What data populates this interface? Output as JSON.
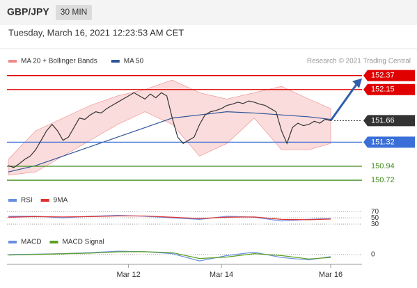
{
  "header": {
    "symbol": "GBP/JPY",
    "timeframe": "30 MIN",
    "datetime": "Tuesday, March 16, 2021 12:23:53 AM CET"
  },
  "chart_data": [
    {
      "type": "line",
      "credit": "Research © 2021 Trading Central",
      "legend": [
        {
          "name": "MA 20 + Bollinger Bands",
          "color": "#f08a8a"
        },
        {
          "name": "MA 50",
          "color": "#2f5597"
        }
      ],
      "color": "#333333",
      "values": [
        150.95,
        150.92,
        150.98,
        151.05,
        151.1,
        151.2,
        151.35,
        151.5,
        151.6,
        151.5,
        151.35,
        151.4,
        151.55,
        151.7,
        151.68,
        151.75,
        151.8,
        151.78,
        151.85,
        151.9,
        151.95,
        152.0,
        152.05,
        152.1,
        152.05,
        152.0,
        152.08,
        152.02,
        152.1,
        152.05,
        151.7,
        151.4,
        151.3,
        151.35,
        151.4,
        151.6,
        151.75,
        151.8,
        151.82,
        151.85,
        151.9,
        151.92,
        151.95,
        151.93,
        151.97,
        151.95,
        151.92,
        151.9,
        151.85,
        151.8,
        151.5,
        151.3,
        151.55,
        151.62,
        151.58,
        151.6,
        151.65,
        151.62,
        151.68,
        151.66
      ],
      "band_x": [
        0,
        5,
        10,
        15,
        20,
        25,
        30,
        35,
        40,
        45,
        50,
        55,
        59
      ],
      "band_upper": [
        151.05,
        151.5,
        151.7,
        151.9,
        152.05,
        152.15,
        152.3,
        152.1,
        152.0,
        152.1,
        152.2,
        152.0,
        151.85
      ],
      "band_lower": [
        150.8,
        150.85,
        151.1,
        151.35,
        151.6,
        151.8,
        151.6,
        151.1,
        151.3,
        151.7,
        151.2,
        151.2,
        151.3
      ],
      "ma50": [
        150.85,
        150.95,
        151.1,
        151.25,
        151.4,
        151.55,
        151.7,
        151.75,
        151.8,
        151.78,
        151.75,
        151.72,
        151.68
      ],
      "levels": [
        {
          "value": 152.37,
          "color": "#e00000"
        },
        {
          "value": 152.15,
          "color": "#e00000"
        },
        {
          "value": 151.66,
          "color": "#333333"
        },
        {
          "value": 151.32,
          "color": "#3a6fd8"
        },
        {
          "value": 150.94,
          "color": "#3d8a1a"
        },
        {
          "value": 150.72,
          "color": "#3d8a1a"
        }
      ],
      "ylim": [
        150.6,
        152.52
      ]
    },
    {
      "type": "line",
      "x": [
        0,
        5,
        10,
        15,
        20,
        25,
        30,
        35,
        40,
        45,
        50,
        55,
        59
      ],
      "series": [
        {
          "name": "RSI",
          "color": "#6a8ee0",
          "values": [
            55,
            55,
            50,
            55,
            58,
            55,
            50,
            45,
            55,
            52,
            40,
            45,
            48
          ]
        },
        {
          "name": "9MA",
          "color": "#e03030",
          "values": [
            52,
            54,
            53,
            54,
            56,
            56,
            52,
            48,
            52,
            53,
            45,
            44,
            46
          ]
        }
      ],
      "ylim": [
        17,
        97
      ],
      "yticks": [
        70,
        50,
        30
      ]
    },
    {
      "type": "line",
      "x": [
        0,
        5,
        10,
        15,
        20,
        25,
        30,
        35,
        40,
        45,
        50,
        55,
        59
      ],
      "series": [
        {
          "name": "MACD",
          "color": "#6a8ee0",
          "values": [
            0,
            0.05,
            0.1,
            0.2,
            0.35,
            0.3,
            0.1,
            -0.65,
            -0.1,
            0.25,
            -0.3,
            -0.55,
            -0.2
          ]
        },
        {
          "name": "MACD Signal",
          "color": "#5aa020",
          "values": [
            -0.05,
            0.02,
            0.08,
            0.15,
            0.28,
            0.3,
            0.2,
            -0.4,
            -0.25,
            0.1,
            -0.1,
            -0.45,
            -0.3
          ]
        }
      ],
      "ylim": [
        -1,
        1
      ],
      "yticks": [
        0
      ],
      "xticks": [
        {
          "value": 22,
          "label": "Mar 12"
        },
        {
          "value": 39,
          "label": "Mar 14"
        },
        {
          "value": 59,
          "label": "Mar 16"
        }
      ]
    }
  ]
}
